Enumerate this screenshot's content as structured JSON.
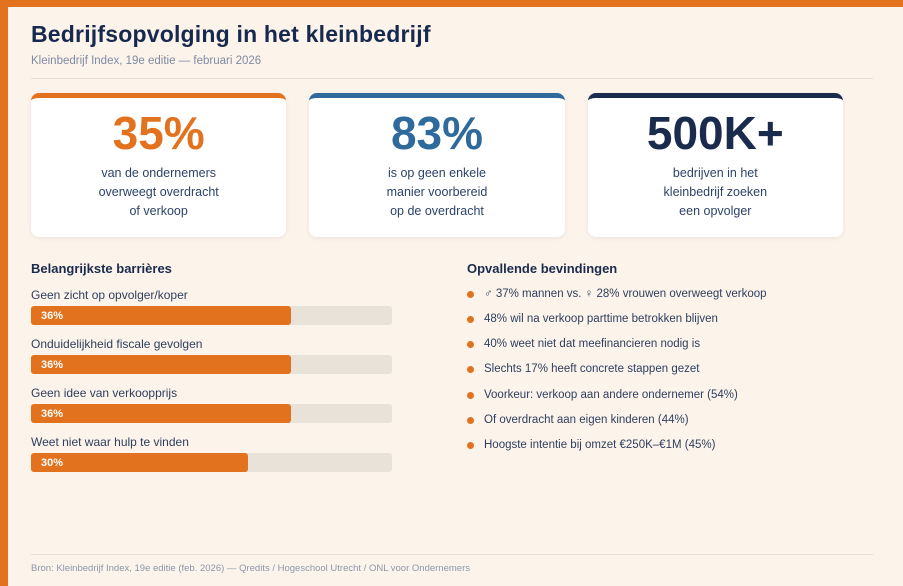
{
  "page": {
    "title": "Bedrijfsopvolging in het kleinbedrijf",
    "subtitle": "Kleinbedrijf Index, 19e editie — februari 2026",
    "footer": "Bron: Kleinbedrijf Index, 19e editie (feb. 2026) — Qredits / Hogeschool Utrecht / ONL voor Ondernemers"
  },
  "colors": {
    "accent_orange": "#E2721E",
    "accent_blue": "#2E6B9C",
    "accent_navy": "#1B2B4D",
    "background_cream": "#FCF3EA",
    "bar_track_gray": "#E8E2D9",
    "text_navy": "#2E3F5E",
    "muted_slate": "#7E8BA3"
  },
  "stat_cards": [
    {
      "value": "35%",
      "accent": "#E2721E",
      "lines": [
        "van de ondernemers",
        "overweegt overdracht",
        "of verkoop"
      ]
    },
    {
      "value": "83%",
      "accent": "#2E6B9C",
      "lines": [
        "is op geen enkele",
        "manier voorbereid",
        "op de overdracht"
      ]
    },
    {
      "value": "500K+",
      "accent": "#1B2B4D",
      "lines": [
        "bedrijven in het",
        "kleinbedrijf zoeken",
        "een opvolger"
      ]
    }
  ],
  "barriers": {
    "heading": "Belangrijkste barrières",
    "items": [
      {
        "label": "Geen zicht op opvolger/koper",
        "value_label": "36%",
        "width": "72%"
      },
      {
        "label": "Onduidelijkheid fiscale gevolgen",
        "value_label": "36%",
        "width": "72%"
      },
      {
        "label": "Geen idee van verkoopprijs",
        "value_label": "36%",
        "width": "72%"
      },
      {
        "label": "Weet niet waar hulp te vinden",
        "value_label": "30%",
        "width": "60%"
      }
    ]
  },
  "findings": {
    "heading": "Opvallende bevindingen",
    "items": [
      "♂ 37% mannen vs. ♀ 28% vrouwen overweegt verkoop",
      "48% wil na verkoop parttime betrokken blijven",
      "40% weet niet dat meefinancieren nodig is",
      "Slechts 17% heeft concrete stappen gezet",
      "Voorkeur: verkoop aan andere ondernemer (54%)",
      "Of overdracht aan eigen kinderen (44%)",
      "Hoogste intentie bij omzet €250K–€1M (45%)"
    ]
  },
  "chart_data": {
    "type": "bar",
    "orientation": "horizontal",
    "title": "Belangrijkste barrières",
    "categories": [
      "Geen zicht op opvolger/koper",
      "Onduidelijkheid fiscale gevolgen",
      "Geen idee van verkoopprijs",
      "Weet niet waar hulp te vinden"
    ],
    "values": [
      36,
      36,
      36,
      30
    ],
    "unit": "%",
    "xlim": [
      0,
      50
    ],
    "bar_color": "#E2721E",
    "track_color": "#E8E2D9",
    "data_labels": [
      "36%",
      "36%",
      "36%",
      "30%"
    ],
    "grid": false,
    "legend": false
  }
}
